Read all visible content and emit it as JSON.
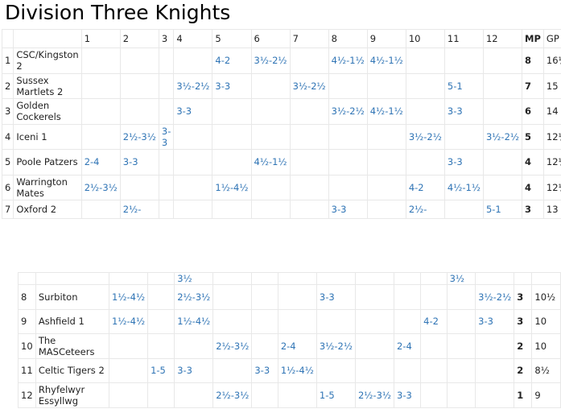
{
  "title": "Division Three Knights",
  "headers": {
    "columns": [
      "1",
      "2",
      "3",
      "4",
      "5",
      "6",
      "7",
      "8",
      "9",
      "10",
      "11",
      "12"
    ],
    "mp": "MP",
    "gp": "GP"
  },
  "rows": [
    {
      "num": "1",
      "team": "CSC/Kingston 2",
      "cells": [
        "",
        "",
        "",
        "",
        "4-2",
        "3½-2½",
        "",
        "4½-1½",
        "4½-1½",
        "",
        "",
        ""
      ],
      "mp": "8",
      "gp": "16½"
    },
    {
      "num": "2",
      "team": "Sussex Martlets 2",
      "cells": [
        "",
        "",
        "",
        "3½-2½",
        "3-3",
        "",
        "3½-2½",
        "",
        "",
        "",
        "5-1",
        ""
      ],
      "mp": "7",
      "gp": "15"
    },
    {
      "num": "3",
      "team": "Golden Cockerels",
      "cells": [
        "",
        "",
        "",
        "3-3",
        "",
        "",
        "",
        "3½-2½",
        "4½-1½",
        "",
        "3-3",
        ""
      ],
      "mp": "6",
      "gp": "14"
    },
    {
      "num": "4",
      "team": "Iceni 1",
      "cells": [
        "",
        "2½-3½",
        "3-3",
        "",
        "",
        "",
        "",
        "",
        "",
        "3½-2½",
        "",
        "3½-2½"
      ],
      "mp": "5",
      "gp": "12½"
    },
    {
      "num": "5",
      "team": "Poole Patzers",
      "cells": [
        "2-4",
        "3-3",
        "",
        "",
        "",
        "4½-1½",
        "",
        "",
        "",
        "",
        "3-3",
        ""
      ],
      "mp": "4",
      "gp": "12½"
    },
    {
      "num": "6",
      "team": "Warrington Mates",
      "cells": [
        "2½-3½",
        "",
        "",
        "",
        "1½-4½",
        "",
        "",
        "",
        "",
        "4-2",
        "4½-1½",
        ""
      ],
      "mp": "4",
      "gp": "12½"
    },
    {
      "num": "7",
      "team": "Oxford 2",
      "cells": [
        "",
        "2½-",
        "",
        "",
        "",
        "",
        "",
        "3-3",
        "",
        "2½-",
        "",
        "5-1"
      ],
      "mp": "3",
      "gp": "13"
    }
  ],
  "continuation": [
    "",
    "",
    "3½",
    "",
    "",
    "",
    "",
    "",
    "",
    "",
    "3½",
    "",
    ""
  ],
  "rows2": [
    {
      "num": "8",
      "team": "Surbiton",
      "cells": [
        "1½-4½",
        "",
        "2½-3½",
        "",
        "",
        "",
        "3-3",
        "",
        "",
        "",
        "",
        "3½-2½"
      ],
      "mp": "3",
      "gp": "10½"
    },
    {
      "num": "9",
      "team": "Ashfield 1",
      "cells": [
        "1½-4½",
        "",
        "1½-4½",
        "",
        "",
        "",
        "",
        "",
        "",
        "4-2",
        "",
        "3-3"
      ],
      "mp": "3",
      "gp": "10"
    },
    {
      "num": "10",
      "team": "The MASCeteers",
      "cells": [
        "",
        "",
        "",
        "2½-3½",
        "",
        "2-4",
        "3½-2½",
        "",
        "2-4",
        "",
        "",
        ""
      ],
      "mp": "2",
      "gp": "10"
    },
    {
      "num": "11",
      "team": "Celtic Tigers 2",
      "cells": [
        "",
        "1-5",
        "3-3",
        "",
        "3-3",
        "1½-4½",
        "",
        "",
        "",
        "",
        "",
        ""
      ],
      "mp": "2",
      "gp": "8½"
    },
    {
      "num": "12",
      "team": "Rhyfelwyr Essyllwg",
      "cells": [
        "",
        "",
        "",
        "2½-3½",
        "",
        "",
        "1-5",
        "2½-3½",
        "3-3",
        "",
        "",
        ""
      ],
      "mp": "1",
      "gp": "9"
    }
  ]
}
